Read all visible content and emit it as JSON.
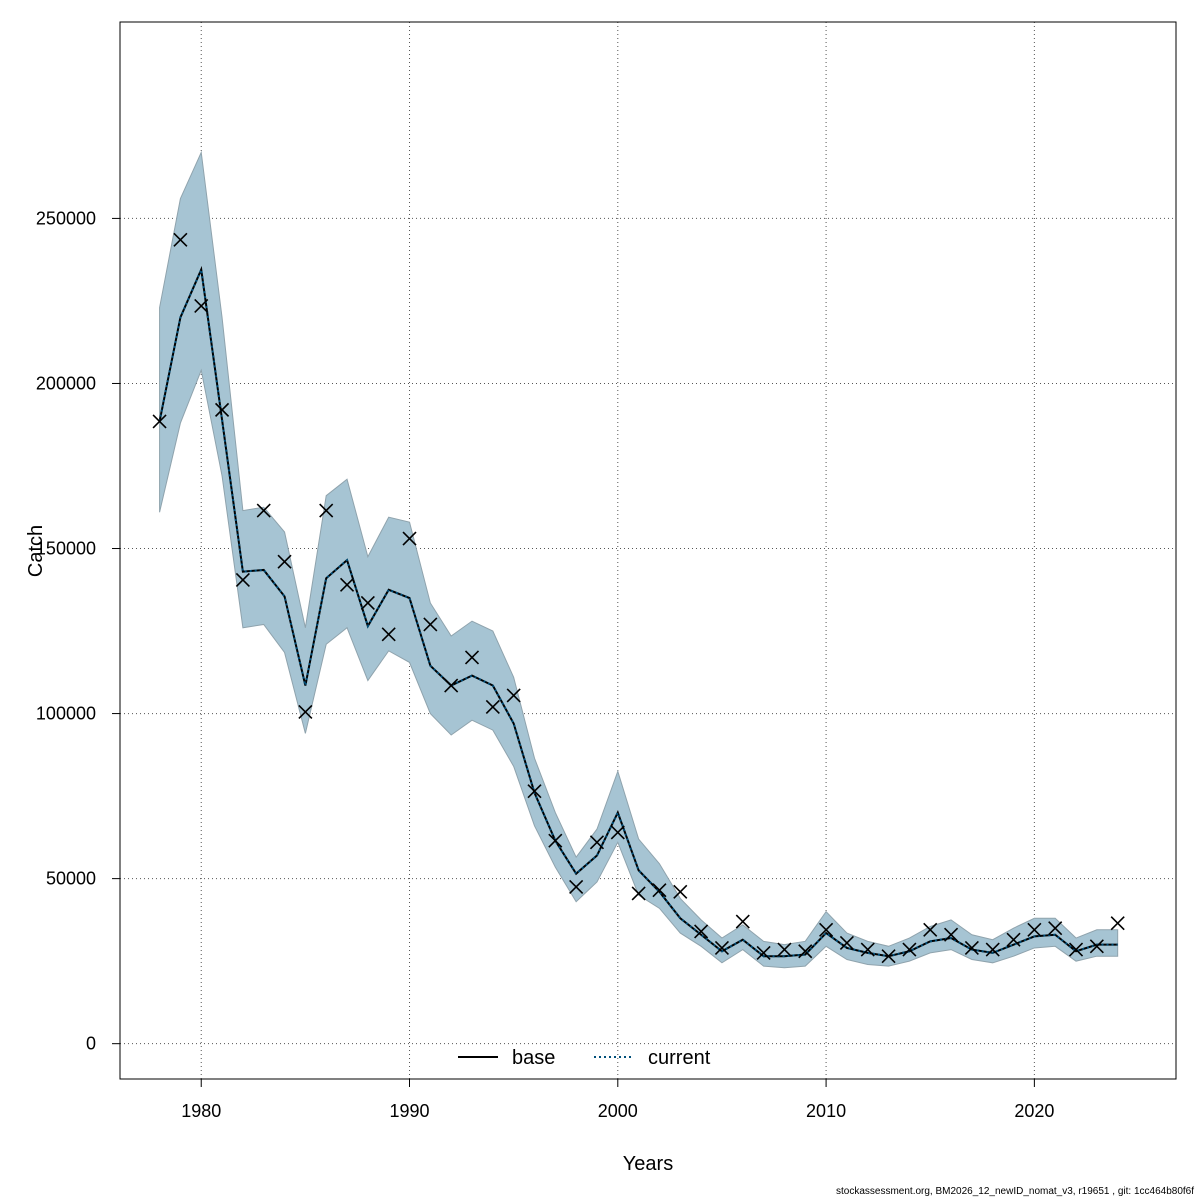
{
  "chart_data": {
    "type": "line",
    "title": "",
    "xlabel": "Years",
    "ylabel": "Catch",
    "xlim": [
      1976.1,
      2026.8
    ],
    "ylim": [
      -10700,
      309500
    ],
    "x_ticks": [
      1980,
      1990,
      2000,
      2010,
      2020
    ],
    "x_tick_labels": [
      "1980",
      "1990",
      "2000",
      "2010",
      "2020"
    ],
    "y_ticks": [
      0,
      50000,
      100000,
      150000,
      200000,
      250000
    ],
    "y_tick_labels": [
      "0",
      "50000",
      "100000",
      "150000",
      "200000",
      "250000"
    ],
    "grid": true,
    "legend_position": "bottom-center",
    "legend": [
      {
        "label": "base",
        "style": "solid",
        "color": "#000000"
      },
      {
        "label": "current",
        "style": "dotted",
        "color": "#004f7a"
      }
    ],
    "x": [
      1978,
      1979,
      1980,
      1981,
      1982,
      1983,
      1984,
      1985,
      1986,
      1987,
      1988,
      1989,
      1990,
      1991,
      1992,
      1993,
      1994,
      1995,
      1996,
      1997,
      1998,
      1999,
      2000,
      2001,
      2002,
      2003,
      2004,
      2005,
      2006,
      2007,
      2008,
      2009,
      2010,
      2011,
      2012,
      2013,
      2014,
      2015,
      2016,
      2017,
      2018,
      2019,
      2020,
      2021,
      2022,
      2023,
      2024
    ],
    "observed": [
      188500,
      243500,
      223500,
      192000,
      140500,
      161500,
      146000,
      100500,
      161500,
      139000,
      133500,
      124000,
      153000,
      127000,
      108500,
      117000,
      102000,
      105500,
      76500,
      61500,
      47500,
      61000,
      64000,
      45500,
      46500,
      46000,
      34000,
      29000,
      37000,
      27500,
      28500,
      28000,
      34500,
      30500,
      28500,
      26500,
      28500,
      34500,
      33000,
      29000,
      28500,
      31500,
      34500,
      35000,
      28500,
      29500,
      36500
    ],
    "series": [
      {
        "name": "current",
        "style": "dotted",
        "color": "#004f7a",
        "values": [
          188500,
          220000,
          234500,
          189000,
          143000,
          143500,
          135500,
          108500,
          141000,
          146500,
          126500,
          137500,
          135000,
          114500,
          108500,
          111500,
          108500,
          97000,
          76000,
          61500,
          51500,
          57000,
          70000,
          52500,
          46000,
          38000,
          33000,
          28000,
          31500,
          26500,
          26500,
          27000,
          33500,
          29000,
          27500,
          26500,
          28000,
          31000,
          32000,
          28500,
          27500,
          30000,
          32500,
          33000,
          28000,
          30000,
          30000
        ]
      },
      {
        "name": "base",
        "style": "solid",
        "color": "#000000",
        "values": [
          188500,
          220000,
          234500,
          189000,
          143000,
          143500,
          135500,
          108500,
          141000,
          146500,
          126500,
          137500,
          135000,
          114500,
          108500,
          111500,
          108500,
          97000,
          76000,
          61500,
          51500,
          57000,
          70000,
          52500,
          46000,
          38000,
          33000,
          28000,
          31500,
          26500,
          26500,
          27000,
          33500,
          29000,
          27500,
          26500,
          28000,
          31000,
          32000,
          28500,
          27500,
          30000,
          32500,
          33000,
          28000,
          30000,
          30000
        ]
      }
    ],
    "ci_band": {
      "color": "#a6c4d3",
      "lower": [
        161000,
        188000,
        204000,
        172000,
        126000,
        127000,
        118500,
        94000,
        121000,
        126000,
        110000,
        119000,
        115500,
        100000,
        93500,
        98000,
        95000,
        84000,
        66000,
        53500,
        43000,
        49000,
        61000,
        45000,
        41000,
        33500,
        29500,
        24500,
        28500,
        23500,
        23000,
        23500,
        29500,
        25500,
        24000,
        23500,
        25000,
        27500,
        28500,
        25500,
        24500,
        26500,
        29000,
        29500,
        25000,
        26500,
        26500
      ],
      "upper": [
        223000,
        256000,
        270000,
        220000,
        161500,
        162500,
        155000,
        126000,
        166000,
        171000,
        147500,
        159500,
        158000,
        133500,
        123500,
        128000,
        125000,
        111000,
        86500,
        70000,
        56500,
        65000,
        82500,
        62000,
        54500,
        44000,
        37500,
        32000,
        36000,
        31000,
        30000,
        31000,
        40000,
        33500,
        31000,
        29500,
        32000,
        35500,
        37500,
        33000,
        31500,
        35000,
        38000,
        38000,
        32000,
        34500,
        34500
      ]
    }
  },
  "footer_text": "stockassessment.org, BM2026_12_newID_nomat_v3, r19651 , git: 1cc464b80f6f"
}
